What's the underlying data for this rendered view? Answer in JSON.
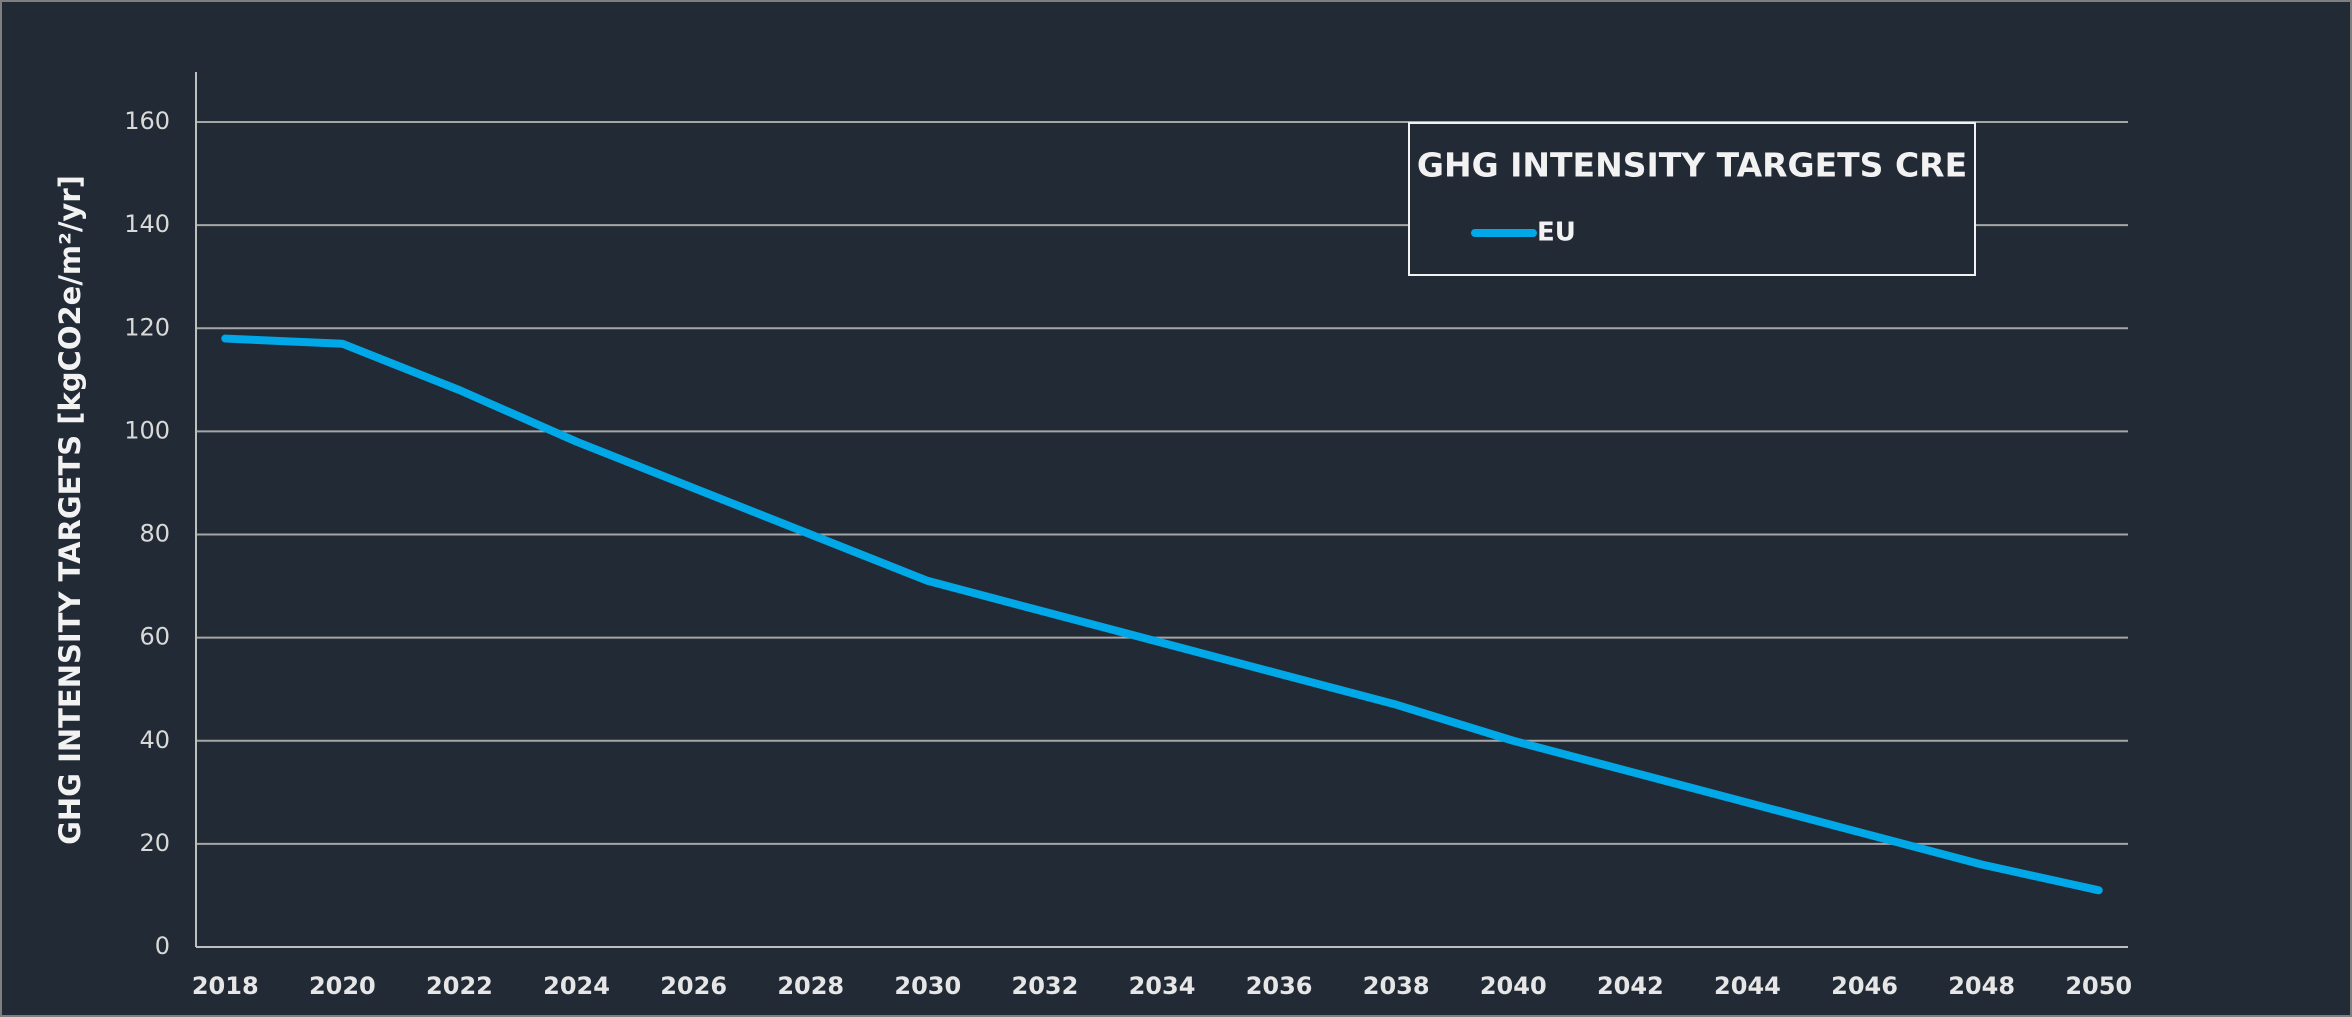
{
  "chart_data": {
    "type": "line",
    "legend_title": "GHG INTENSITY TARGETS CRE",
    "ylabel": "GHG INTENSITY TARGETS [kgCO2e/m²/yr]",
    "x": [
      2018,
      2020,
      2022,
      2024,
      2026,
      2028,
      2030,
      2032,
      2034,
      2036,
      2038,
      2040,
      2042,
      2044,
      2046,
      2048,
      2050
    ],
    "series": [
      {
        "name": "EU",
        "color": "#00a8e8",
        "values": [
          118,
          117,
          108,
          98,
          89,
          80,
          71,
          65,
          59,
          53,
          47,
          40,
          34,
          28,
          22,
          16,
          11
        ]
      }
    ],
    "xlim": [
      2017.5,
      2050.5
    ],
    "xticks": [
      2018,
      2020,
      2022,
      2024,
      2026,
      2028,
      2030,
      2032,
      2034,
      2036,
      2038,
      2040,
      2042,
      2044,
      2046,
      2048,
      2050
    ],
    "ylim": [
      0,
      160
    ],
    "yticks": [
      0,
      20,
      40,
      60,
      80,
      100,
      120,
      140,
      160
    ],
    "grid": true,
    "legend": "upper right"
  }
}
